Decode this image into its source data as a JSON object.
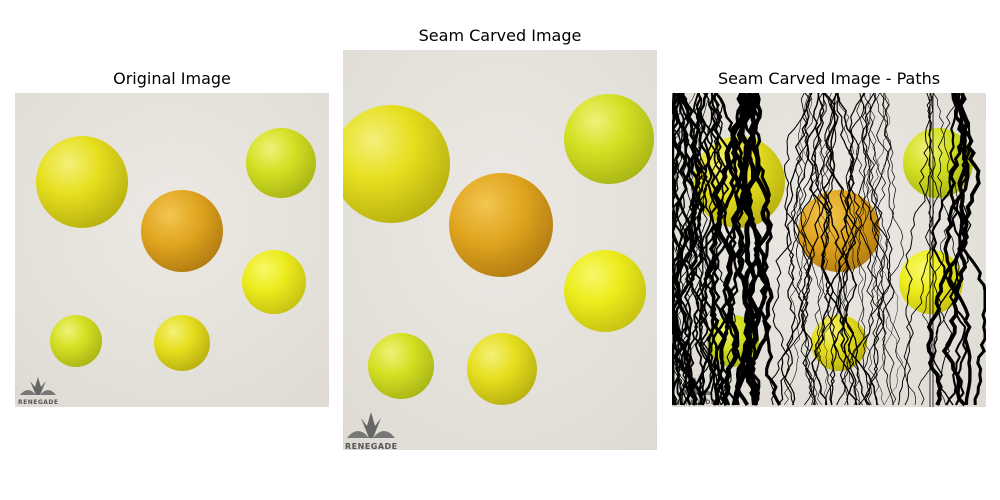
{
  "panels": {
    "original": {
      "title": "Original Image"
    },
    "carved": {
      "title": "Seam Carved Image"
    },
    "paths": {
      "title": "Seam Carved Image - Paths"
    }
  },
  "watermark": {
    "text": "RENEGADE"
  },
  "colors": {
    "background": "#e8e5df",
    "ball_yellow": "#e8e21a",
    "ball_lime": "#d6e22a",
    "ball_orange": "#e0a61e",
    "seam": "#000000"
  }
}
